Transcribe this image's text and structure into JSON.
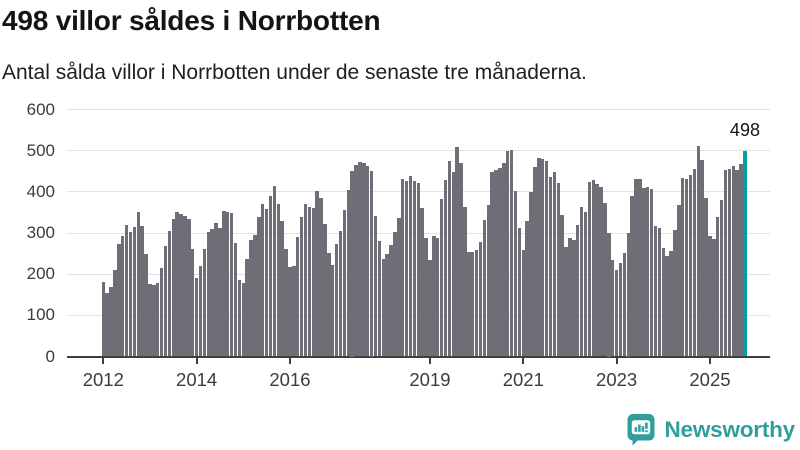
{
  "header": {
    "title": "498 villor såldes i Norrbotten",
    "subtitle": "Antal sålda villor i Norrbotten under de senaste tre månaderna."
  },
  "chart_data": {
    "type": "bar",
    "title": "498 villor såldes i Norrbotten",
    "subtitle": "Antal sålda villor i Norrbotten under de senaste tre månaderna.",
    "frequency": "monthly",
    "start_year": 2012,
    "x_tick_years": [
      2012,
      2014,
      2016,
      2019,
      2021,
      2023,
      2025
    ],
    "x_tick_labels": [
      "2012",
      "2014",
      "2016",
      "2019",
      "2021",
      "2023",
      "2025"
    ],
    "y_ticks": [
      0,
      100,
      200,
      300,
      400,
      500,
      600
    ],
    "y_tick_labels": [
      "0",
      "100",
      "200",
      "300",
      "400",
      "500",
      "600"
    ],
    "ylim": [
      0,
      600
    ],
    "grid": "horizontal",
    "legend": "none",
    "values": [
      181,
      155,
      170,
      210,
      273,
      292,
      319,
      303,
      314,
      350,
      317,
      248,
      175,
      173,
      179,
      215,
      268,
      305,
      335,
      350,
      345,
      341,
      333,
      262,
      191,
      219,
      262,
      302,
      310,
      325,
      313,
      353,
      351,
      349,
      276,
      185,
      179,
      236,
      284,
      295,
      340,
      370,
      358,
      390,
      414,
      370,
      330,
      261,
      217,
      221,
      290,
      340,
      370,
      364,
      360,
      401,
      385,
      322,
      251,
      223,
      274,
      306,
      356,
      405,
      450,
      466,
      472,
      470,
      462,
      450,
      341,
      280,
      237,
      248,
      272,
      302,
      337,
      432,
      426,
      438,
      426,
      422,
      361,
      288,
      235,
      293,
      287,
      383,
      429,
      474,
      449,
      508,
      471,
      363,
      255,
      253,
      259,
      277,
      332,
      368,
      449,
      453,
      459,
      471,
      500,
      502,
      401,
      312,
      259,
      328,
      400,
      460,
      483,
      480,
      476,
      435,
      449,
      421,
      344,
      267,
      287,
      283,
      320,
      364,
      352,
      425,
      429,
      419,
      411,
      372,
      300,
      235,
      211,
      227,
      251,
      300,
      389,
      430,
      430,
      410,
      412,
      406,
      317,
      313,
      264,
      244,
      256,
      308,
      367,
      434,
      431,
      440,
      456,
      511,
      478,
      385,
      292,
      286,
      339,
      381,
      453,
      456,
      462,
      454,
      468,
      498
    ],
    "highlight_last": true,
    "annotation": {
      "text": "498",
      "value": 498,
      "position": "above-last-bar"
    },
    "colors": {
      "bar": "#6e6e76",
      "highlight": "#00a1a1",
      "gridline": "#e2e2e2",
      "axis": "#3f3f3f"
    }
  },
  "footer": {
    "brand": "Newsworthy",
    "brand_color": "#2f9e9c",
    "logo_icon": "newsworthy-bars-icon"
  }
}
